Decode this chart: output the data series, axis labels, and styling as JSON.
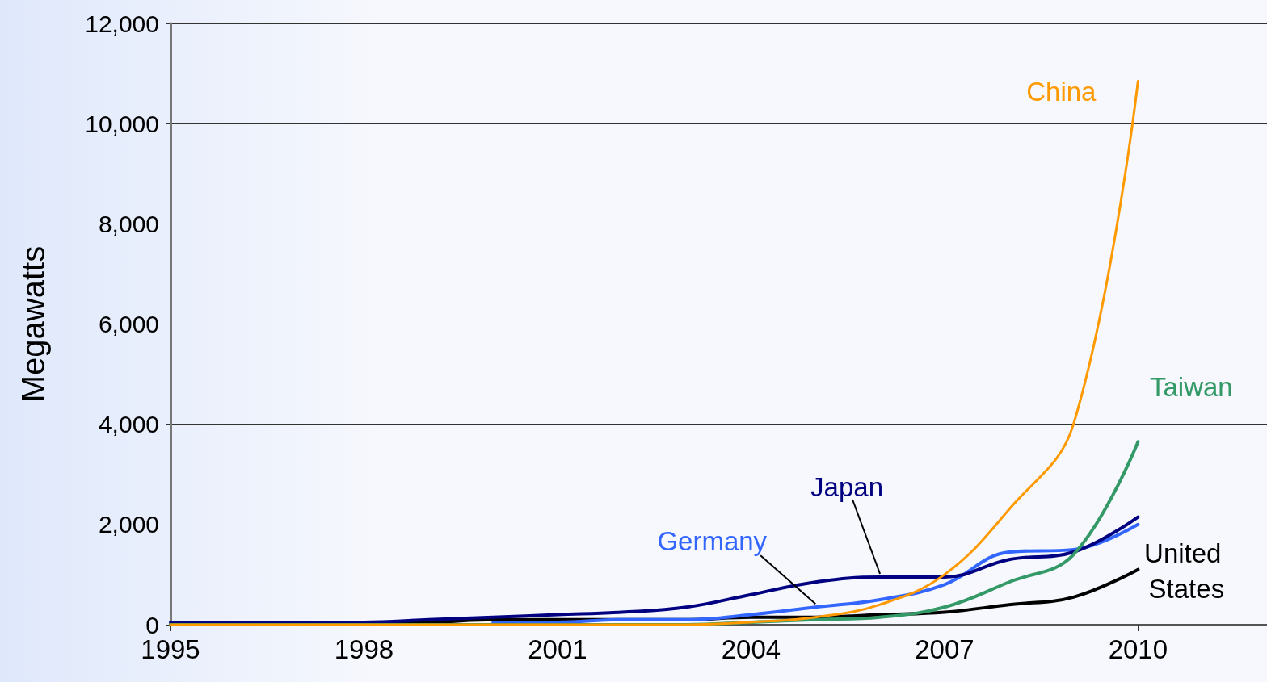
{
  "chart_data": {
    "type": "line",
    "ylabel": "Megawatts",
    "x": [
      1995,
      1996,
      1997,
      1998,
      1999,
      2000,
      2001,
      2002,
      2003,
      2004,
      2005,
      2006,
      2007,
      2008,
      2009,
      2010
    ],
    "series": [
      {
        "name": "China",
        "color": "#ff9900",
        "values": [
          0,
          0,
          0,
          0,
          0,
          0,
          0,
          0,
          0,
          50,
          150,
          400,
          1000,
          2300,
          4000,
          10850
        ]
      },
      {
        "name": "Taiwan",
        "color": "#339966",
        "values": [
          0,
          0,
          0,
          0,
          0,
          0,
          0,
          0,
          0,
          50,
          100,
          150,
          350,
          850,
          1400,
          3650
        ]
      },
      {
        "name": "Japan",
        "color": "#000080",
        "values": [
          50,
          50,
          50,
          50,
          100,
          150,
          200,
          250,
          350,
          600,
          850,
          950,
          950,
          1300,
          1450,
          2150
        ]
      },
      {
        "name": "Germany",
        "color": "#3366ff",
        "values": [
          null,
          null,
          null,
          null,
          null,
          50,
          50,
          100,
          100,
          200,
          350,
          500,
          800,
          1450,
          1500,
          2000
        ]
      },
      {
        "name": "United States",
        "color": "#000000",
        "values": [
          0,
          0,
          50,
          50,
          50,
          100,
          100,
          100,
          100,
          150,
          150,
          200,
          250,
          400,
          550,
          1100
        ]
      }
    ],
    "xlim": [
      1995,
      2012
    ],
    "xticks": [
      1995,
      1998,
      2001,
      2004,
      2007,
      2010
    ],
    "ylim": [
      0,
      12000
    ],
    "yticks": [
      0,
      {
        "value": 2000,
        "label": "2,000"
      },
      {
        "value": 4000,
        "label": "4,000"
      },
      {
        "value": 6000,
        "label": "6,000"
      },
      {
        "value": 8000,
        "label": "8,000"
      },
      {
        "value": 10000,
        "label": "10,000"
      },
      {
        "value": 12000,
        "label": "12,000"
      }
    ],
    "grid": "y"
  }
}
